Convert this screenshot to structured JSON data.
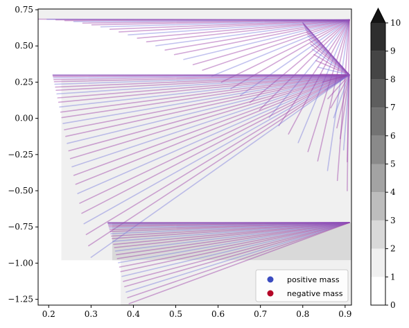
{
  "chart_data": {
    "type": "line",
    "title": "",
    "xlabel": "",
    "ylabel": "",
    "xlim": [
      0.175,
      0.915
    ],
    "ylim": [
      -1.29,
      0.755
    ],
    "x_ticks": [
      0.2,
      0.3,
      0.4,
      0.5,
      0.6,
      0.7,
      0.8,
      0.9
    ],
    "x_tick_labels": [
      "0.2",
      "0.3",
      "0.4",
      "0.5",
      "0.6",
      "0.7",
      "0.8",
      "0.9"
    ],
    "y_ticks": [
      0.75,
      0.5,
      0.25,
      0.0,
      -0.25,
      -0.5,
      -0.75,
      -1.0,
      -1.25
    ],
    "y_tick_labels": [
      "0.75",
      "0.50",
      "0.25",
      "0.00",
      "−0.25",
      "−0.50",
      "−0.75",
      "−1.00",
      "−1.25"
    ],
    "grid": false,
    "legend": {
      "position": "lower-right",
      "entries": [
        {
          "label": "positive mass",
          "color": "#3b4cc0"
        },
        {
          "label": "negative mass",
          "color": "#b40426"
        }
      ]
    },
    "background_regions": [
      {
        "x": [
          0.175,
          0.915
        ],
        "y": [
          0.755,
          0.685
        ],
        "level": 1
      },
      {
        "x": [
          0.23,
          0.915
        ],
        "y": [
          0.27,
          -0.98
        ],
        "level": 1
      },
      {
        "x": [
          0.35,
          0.915
        ],
        "y": [
          -0.72,
          -0.98
        ],
        "level": 2
      },
      {
        "x": [
          0.37,
          0.915
        ],
        "y": [
          -0.98,
          -1.29
        ],
        "level": 1
      }
    ],
    "fans": [
      {
        "apex": [
          0.91,
          0.68
        ],
        "count": 34,
        "start": [
          0.175,
          0.685
        ],
        "end": [
          0.905,
          -0.5
        ],
        "corner": [
          0.52,
          0.685
        ]
      },
      {
        "apex": [
          0.91,
          0.3
        ],
        "count": 32,
        "start": [
          0.21,
          0.3
        ],
        "end": [
          0.3,
          -0.96
        ],
        "corner": [
          0.21,
          0.3
        ]
      },
      {
        "apex": [
          0.91,
          0.3
        ],
        "count": 24,
        "start": [
          0.8,
          0.66
        ],
        "end": [
          0.905,
          -0.3
        ],
        "corner": [
          0.805,
          0.66
        ]
      },
      {
        "apex": [
          0.91,
          -0.72
        ],
        "count": 28,
        "start": [
          0.34,
          -0.72
        ],
        "end": [
          0.39,
          -1.28
        ],
        "corner": [
          0.34,
          -0.72
        ]
      }
    ],
    "line_color": "#9b3fa6",
    "line_color_alt": "#7b7bdc",
    "colorbar": {
      "min": 0,
      "max": 10,
      "ticks": [
        0,
        1,
        2,
        3,
        4,
        5,
        6,
        7,
        8,
        9,
        10
      ],
      "tick_labels": [
        "0",
        "1",
        "2",
        "3",
        "4",
        "5",
        "6",
        "7",
        "8",
        "9",
        "10"
      ],
      "extend": "max",
      "colors": [
        "#ffffff",
        "#f0f0f0",
        "#d9d9d9",
        "#bdbdbd",
        "#a3a3a3",
        "#8a8a8a",
        "#737373",
        "#5e5e5e",
        "#454545",
        "#2e2e2e",
        "#141414"
      ]
    }
  }
}
